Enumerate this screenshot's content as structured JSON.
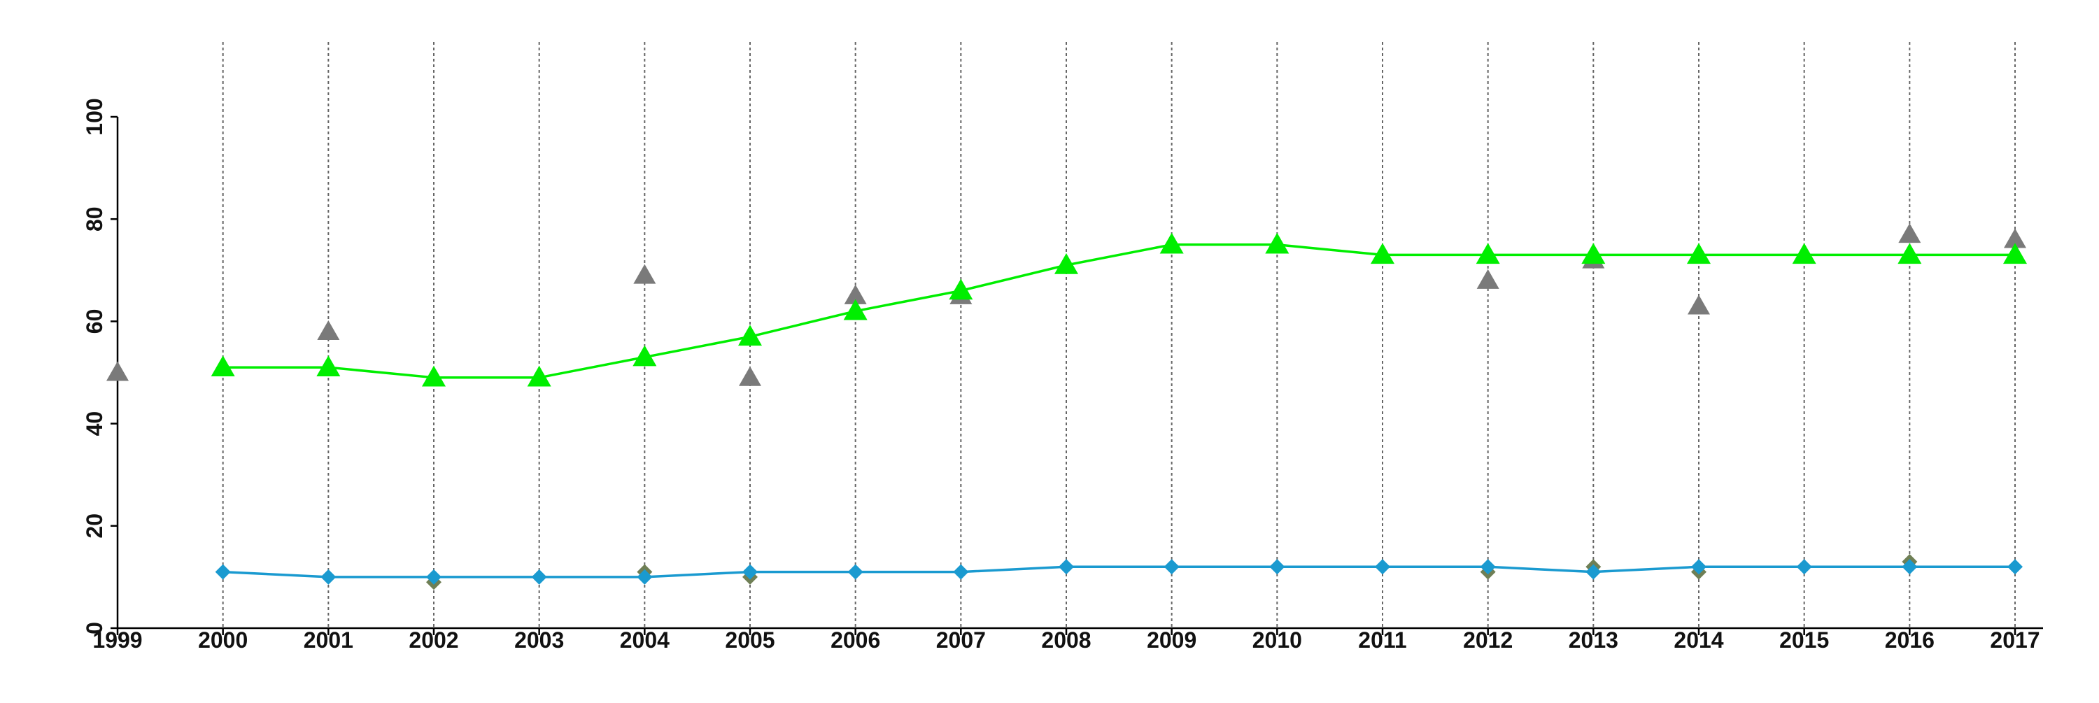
{
  "chart_data": {
    "type": "line",
    "title": "",
    "xlabel": "",
    "ylabel": "",
    "x": [
      1999,
      2000,
      2001,
      2002,
      2003,
      2004,
      2005,
      2006,
      2007,
      2008,
      2009,
      2010,
      2011,
      2012,
      2013,
      2014,
      2015,
      2016,
      2017
    ],
    "x_ticks": [
      "1999",
      "2000",
      "2001",
      "2002",
      "2003",
      "2004",
      "2005",
      "2006",
      "2007",
      "2008",
      "2009",
      "2010",
      "2011",
      "2012",
      "2013",
      "2014",
      "2015",
      "2016",
      "2017"
    ],
    "xlim": [
      1999,
      2017
    ],
    "ylim": [
      0,
      100
    ],
    "y_ticks": [
      "0",
      "20",
      "40",
      "60",
      "80",
      "100"
    ],
    "vertical_grid": "dotted, at each year 2000-2017",
    "legend": "none",
    "series": [
      {
        "style": "line",
        "marker": "triangle",
        "color": "#00ee00",
        "values": [
          null,
          51,
          51,
          49,
          49,
          53,
          57,
          62,
          66,
          71,
          75,
          75,
          73,
          73,
          73,
          73,
          73,
          73,
          73
        ]
      },
      {
        "style": "scatter",
        "marker": "triangle",
        "color": "#7a7a7a",
        "values": [
          50,
          null,
          58,
          null,
          null,
          69,
          49,
          65,
          65,
          null,
          null,
          null,
          null,
          68,
          72,
          63,
          null,
          77,
          76
        ]
      },
      {
        "style": "line",
        "marker": "diamond",
        "color": "#1a9ad0",
        "values": [
          null,
          11,
          10,
          10,
          10,
          10,
          11,
          11,
          11,
          12,
          12,
          12,
          12,
          12,
          11,
          12,
          12,
          12,
          12
        ]
      },
      {
        "style": "scatter",
        "marker": "diamond",
        "color": "#6f7f55",
        "values": [
          null,
          null,
          null,
          9,
          null,
          11,
          10,
          null,
          null,
          null,
          null,
          null,
          null,
          11,
          12,
          11,
          null,
          13,
          null
        ]
      }
    ]
  }
}
